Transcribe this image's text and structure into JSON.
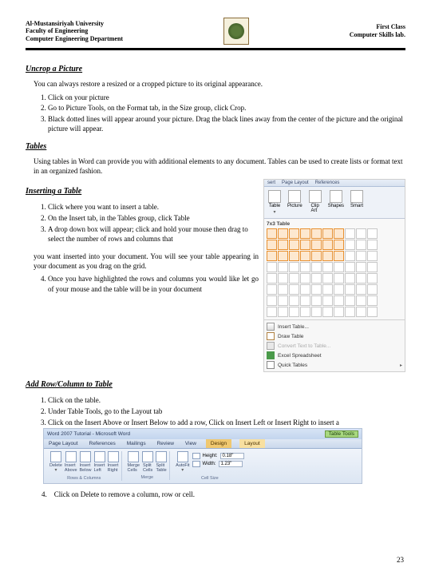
{
  "header": {
    "left": {
      "l1": "Al-Mustansiriyah University",
      "l2": "Faculty of Engineering",
      "l3": "Computer Engineering Department"
    },
    "right": {
      "l1": "First Class",
      "l2": "Computer Skills lab."
    }
  },
  "sections": {
    "uncrop": {
      "title": "Uncrop a Picture",
      "intro": "You can always restore a resized or a cropped picture to its original appearance.",
      "steps": [
        "Click on your picture",
        "Go to Picture Tools, on the Format tab, in the Size group, click Crop.",
        "Black dotted lines will appear around your picture. Drag the black lines away from the center of the picture and the original picture will appear."
      ]
    },
    "tables": {
      "title": "Tables",
      "intro": "Using tables in Word can provide you with additional elements to any document. Tables can be used to create lists or format text in an organized fashion."
    },
    "inserting": {
      "title": "Inserting a Table",
      "steps": [
        "Click where you want to insert a table.",
        "On the Insert tab, in the Tables group, click Table",
        "A drop down box will appear; click and hold your mouse then drag to select the number of rows and columns that"
      ],
      "cont": "you want inserted into your document. You will see your table appearing in your document as you drag on the grid.",
      "step4": "Once you have highlighted the rows and columns you would like let go of your mouse and the table will be in your document"
    },
    "addrow": {
      "title": "Add Row/Column to Table",
      "steps": [
        "Click on the table.",
        "Under Table Tools, go to the Layout tab",
        "Click on the Insert Above or Insert Below to add a row, Click on Insert Left or Insert Right to insert a"
      ],
      "step4_num": "4.",
      "step4_text": "Click on Delete to remove a column, row or cell."
    }
  },
  "insert_ribbon": {
    "tabs": [
      "sert",
      "Page Layout",
      "References"
    ],
    "buttons": {
      "table": "Table",
      "picture": "Picture",
      "clip": "Clip\nArt",
      "shapes": "Shapes",
      "smart": "Smart"
    },
    "grid_caption": "7x3 Table",
    "sel_rows": 3,
    "sel_cols": 7,
    "menu": {
      "insert": "Insert Table...",
      "draw": "Draw Table",
      "convert": "Convert Text to Table...",
      "excel": "Excel Spreadsheet",
      "quick": "Quick Tables"
    }
  },
  "layout_ribbon": {
    "title_app": "Word 2007 Tutorial - Microsoft Word",
    "tool_label": "Table Tools",
    "tabs": [
      "Page Layout",
      "References",
      "Mailings",
      "Review",
      "View"
    ],
    "tool_tabs": [
      "Design",
      "Layout"
    ],
    "buttons": {
      "delete": "Delete",
      "ins_above": "Insert\nAbove",
      "ins_below": "Insert\nBelow",
      "ins_left": "Insert\nLeft",
      "ins_right": "Insert\nRight",
      "merge": "Merge\nCells",
      "split_c": "Split\nCells",
      "split_t": "Split\nTable",
      "autofit": "AutoFit"
    },
    "groups": {
      "rows": "Rows & Columns",
      "merge": "Merge",
      "cell": "Cell Size"
    },
    "height_lbl": "Height:",
    "height_val": "0.18\"",
    "width_lbl": "Width:",
    "width_val": "1.23\""
  },
  "page_number": "23"
}
